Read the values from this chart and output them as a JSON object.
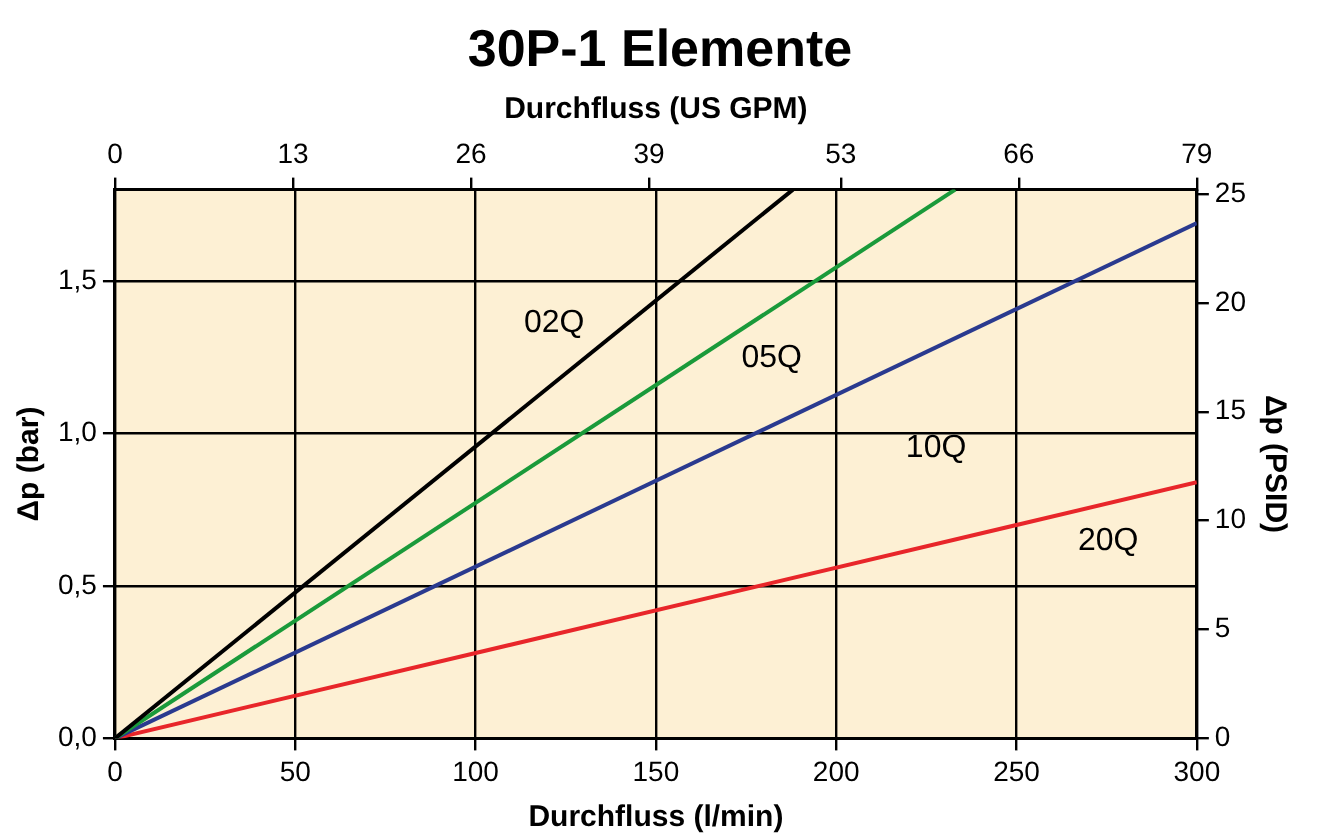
{
  "chart_data": {
    "type": "line",
    "title": "30P-1 Elemente",
    "xlabel": "Durchfluss (l/min)",
    "x2label": "Durchfluss (US GPM)",
    "ylabel": "Δp (bar)",
    "y2label": "Δp (PSID)",
    "xlim": [
      0,
      300
    ],
    "xticks": [
      0,
      50,
      100,
      150,
      200,
      250,
      300
    ],
    "x2lim": [
      0,
      79
    ],
    "x2ticks": [
      0,
      13,
      26,
      39,
      53,
      66,
      79
    ],
    "ylim": [
      0,
      1.8
    ],
    "yticks": [
      {
        "value": 0,
        "label": "0,0"
      },
      {
        "value": 0.5,
        "label": "0,5"
      },
      {
        "value": 1,
        "label": "1,0"
      },
      {
        "value": 1.5,
        "label": "1,5"
      }
    ],
    "y2lim": [
      0,
      25.2
    ],
    "y2ticks": [
      0,
      5,
      10,
      15,
      20,
      25
    ],
    "grid": true,
    "legend": false,
    "marker": "none",
    "line_style": "solid",
    "series": [
      {
        "name": "02Q",
        "color": "#000000",
        "x": [
          0,
          188
        ],
        "values": [
          0,
          1.8
        ]
      },
      {
        "name": "05Q",
        "color": "#1a9a3a",
        "x": [
          0,
          233
        ],
        "values": [
          0,
          1.8
        ]
      },
      {
        "name": "10Q",
        "color": "#2a3a8f",
        "x": [
          0,
          300
        ],
        "values": [
          0,
          1.69
        ]
      },
      {
        "name": "20Q",
        "color": "#e8262a",
        "x": [
          0,
          300
        ],
        "values": [
          0,
          0.84
        ]
      }
    ]
  }
}
